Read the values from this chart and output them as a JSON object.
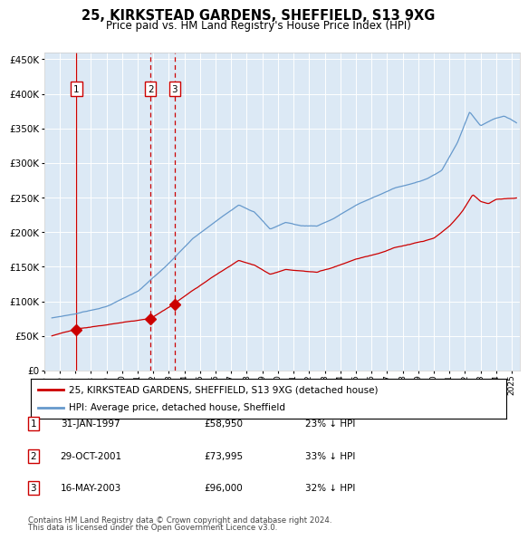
{
  "title": "25, KIRKSTEAD GARDENS, SHEFFIELD, S13 9XG",
  "subtitle": "Price paid vs. HM Land Registry's House Price Index (HPI)",
  "legend_label_red": "25, KIRKSTEAD GARDENS, SHEFFIELD, S13 9XG (detached house)",
  "legend_label_blue": "HPI: Average price, detached house, Sheffield",
  "footer_line1": "Contains HM Land Registry data © Crown copyright and database right 2024.",
  "footer_line2": "This data is licensed under the Open Government Licence v3.0.",
  "transactions": [
    {
      "num": 1,
      "date": "31-JAN-1997",
      "price": 58950,
      "pct": "23%",
      "dir": "↓"
    },
    {
      "num": 2,
      "date": "29-OCT-2001",
      "price": 73995,
      "pct": "33%",
      "dir": "↓"
    },
    {
      "num": 3,
      "date": "16-MAY-2003",
      "price": 96000,
      "pct": "32%",
      "dir": "↓"
    }
  ],
  "sale_dates_decimal": [
    1997.08,
    2001.83,
    2003.38
  ],
  "sale_prices": [
    58950,
    73995,
    96000
  ],
  "red_line_color": "#cc0000",
  "blue_line_color": "#6699cc",
  "plot_bg_color": "#dce9f5",
  "vline_color": "#cc0000",
  "ylim": [
    0,
    460000
  ],
  "xlim_start": 1995.3,
  "xlim_end": 2025.5,
  "fig_bg": "#ffffff"
}
